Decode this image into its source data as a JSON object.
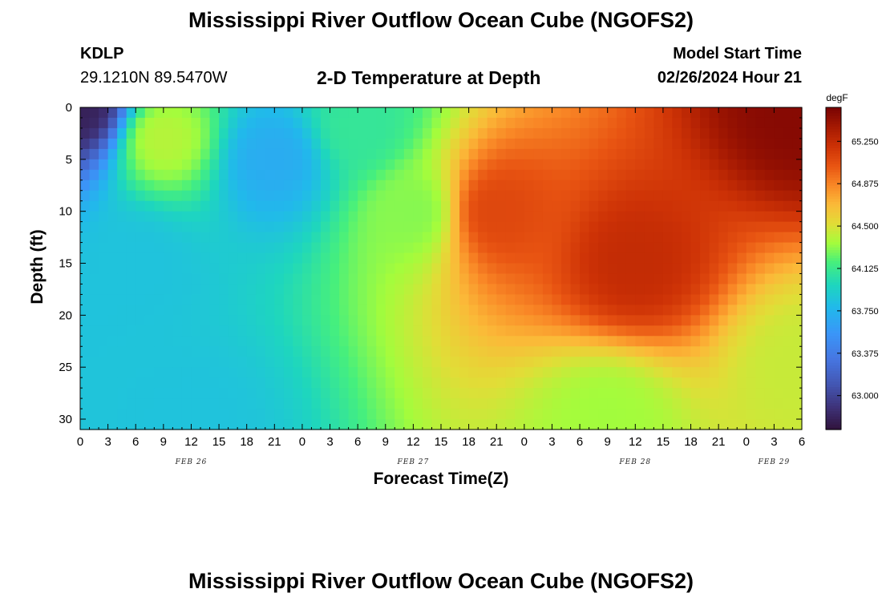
{
  "header": {
    "title_top": "Mississippi River Outflow Ocean Cube (NGOFS2)",
    "title_bottom": "Mississippi River Outflow Ocean Cube (NGOFS2)",
    "station": "KDLP",
    "coords": "29.1210N  89.5470W",
    "subtitle": "2-D Temperature at Depth",
    "model_start_label": "Model Start Time",
    "model_start_value": "02/26/2024 Hour 21"
  },
  "chart_data": {
    "type": "heatmap",
    "title": "2-D Temperature at Depth",
    "xlabel": "Forecast Time(Z)",
    "ylabel": "Depth (ft)",
    "x_range_hours": [
      0,
      78
    ],
    "x_tick_labels": [
      "0",
      "3",
      "6",
      "9",
      "12",
      "15",
      "18",
      "21",
      "0",
      "3",
      "6",
      "9",
      "12",
      "15",
      "18",
      "21",
      "0",
      "3",
      "6",
      "9",
      "12",
      "15",
      "18",
      "21",
      "0",
      "3",
      "6"
    ],
    "date_labels": [
      {
        "label": "FEB 26",
        "hour": 12
      },
      {
        "label": "FEB 27",
        "hour": 36
      },
      {
        "label": "FEB 28",
        "hour": 60
      },
      {
        "label": "FEB 29",
        "hour": 75
      }
    ],
    "ylim": [
      0,
      31
    ],
    "y_ticks": [
      0,
      5,
      10,
      15,
      20,
      25,
      30
    ],
    "colorbar": {
      "unit": "degF",
      "range": [
        62.7,
        65.55
      ],
      "ticks": [
        "63.000",
        "63.375",
        "63.750",
        "64.125",
        "64.500",
        "64.875",
        "65.250"
      ]
    },
    "gradient_samples_degF": [
      {
        "hour": 0,
        "depth": 0,
        "value": 62.8
      },
      {
        "hour": 6,
        "depth": 15,
        "value": 63.85
      },
      {
        "hour": 9,
        "depth": 3,
        "value": 64.4
      },
      {
        "hour": 21,
        "depth": 5,
        "value": 63.7
      },
      {
        "hour": 30,
        "depth": 2,
        "value": 64.1
      },
      {
        "hour": 36,
        "depth": 10,
        "value": 64.3
      },
      {
        "hour": 45,
        "depth": 10,
        "value": 65.1
      },
      {
        "hour": 60,
        "depth": 15,
        "value": 65.25
      },
      {
        "hour": 78,
        "depth": 0,
        "value": 65.5
      },
      {
        "hour": 78,
        "depth": 25,
        "value": 64.45
      },
      {
        "hour": 57,
        "depth": 30,
        "value": 64.35
      },
      {
        "hour": 12,
        "depth": 30,
        "value": 63.85
      }
    ]
  }
}
